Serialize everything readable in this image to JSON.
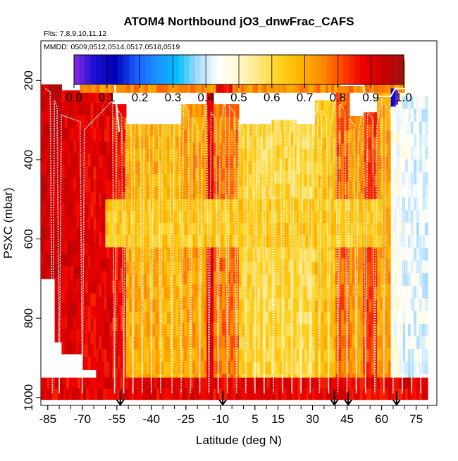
{
  "chart_data": {
    "type": "heatmap",
    "title": "ATOM4 Northbound jO3_dnwFrac_CAFS",
    "subtitle": "Flts: 7,8,9,10,11,12",
    "annotation": "MMDD: 0509,0512,0514,0517,0518,0519",
    "xlabel": "Latitude (deg N)",
    "ylabel": "PSXC (mbar)",
    "xlim": [
      -88,
      84
    ],
    "ylim": [
      1020,
      100
    ],
    "x_ticks": [
      -85,
      -70,
      -55,
      -40,
      -25,
      -10,
      5,
      15,
      30,
      45,
      60,
      75
    ],
    "x_tick_labels": [
      "-85",
      "-70",
      "-55",
      "-40",
      "-25",
      "-10",
      "5",
      "15",
      "30",
      "45",
      "60",
      "75"
    ],
    "y_ticks": [
      200,
      400,
      600,
      800,
      1000
    ],
    "y_tick_labels": [
      "200",
      "400",
      "600",
      "800",
      "1000"
    ],
    "colorbar": {
      "min": 0.0,
      "max": 1.0,
      "ticks": [
        0.0,
        0.1,
        0.2,
        0.3,
        0.4,
        0.5,
        0.6,
        0.7,
        0.8,
        0.9,
        1.0
      ],
      "tick_labels": [
        "0.0",
        "0.1",
        "0.2",
        "0.3",
        "0.4",
        "0.5",
        "0.6",
        "0.7",
        "0.8",
        "0.9",
        "1.0"
      ],
      "colors": [
        "#8a2be2",
        "#1a0fd0",
        "#0000b8",
        "#1a5cff",
        "#1e90ff",
        "#00bfff",
        "#a8dcff",
        "#ffffff",
        "#fffacd",
        "#ffe680",
        "#ffd21e",
        "#ffb400",
        "#ff8c00",
        "#ff4500",
        "#ee0000",
        "#c80000",
        "#a01010"
      ]
    },
    "regions": [
      {
        "lat": [
          -88,
          -82
        ],
        "p": [
          210,
          700
        ],
        "value": 0.93
      },
      {
        "lat": [
          -82,
          -79
        ],
        "p": [
          210,
          860
        ],
        "value": 0.93
      },
      {
        "lat": [
          -79,
          -70
        ],
        "p": [
          225,
          890
        ],
        "value": 0.91
      },
      {
        "lat": [
          -70,
          -64
        ],
        "p": [
          225,
          930
        ],
        "value": 0.89
      },
      {
        "lat": [
          -64,
          -57
        ],
        "p": [
          225,
          975
        ],
        "value": 0.9
      },
      {
        "lat": [
          -57,
          -51
        ],
        "p": [
          260,
          990
        ],
        "value": 0.86
      },
      {
        "lat": [
          -51,
          -37
        ],
        "p": [
          310,
          1005
        ],
        "value": 0.7
      },
      {
        "lat": [
          -37,
          -27
        ],
        "p": [
          310,
          1005
        ],
        "value": 0.68
      },
      {
        "lat": [
          -27,
          -16
        ],
        "p": [
          260,
          1005
        ],
        "value": 0.72
      },
      {
        "lat": [
          -16,
          -13
        ],
        "p": [
          230,
          1005
        ],
        "value": 0.9
      },
      {
        "lat": [
          -13,
          -2
        ],
        "p": [
          260,
          1005
        ],
        "value": 0.77
      },
      {
        "lat": [
          -2,
          6
        ],
        "p": [
          310,
          1005
        ],
        "value": 0.63
      },
      {
        "lat": [
          6,
          12
        ],
        "p": [
          310,
          1005
        ],
        "value": 0.61
      },
      {
        "lat": [
          12,
          23
        ],
        "p": [
          300,
          1005
        ],
        "value": 0.62
      },
      {
        "lat": [
          23,
          31
        ],
        "p": [
          310,
          1005
        ],
        "value": 0.6
      },
      {
        "lat": [
          31,
          40
        ],
        "p": [
          250,
          1005
        ],
        "value": 0.66
      },
      {
        "lat": [
          40,
          46
        ],
        "p": [
          230,
          1005
        ],
        "value": 0.79
      },
      {
        "lat": [
          46,
          52
        ],
        "p": [
          290,
          1005
        ],
        "value": 0.73
      },
      {
        "lat": [
          52,
          58
        ],
        "p": [
          280,
          1005
        ],
        "value": 0.82
      },
      {
        "lat": [
          58,
          64
        ],
        "p": [
          230,
          1005
        ],
        "value": 0.72
      },
      {
        "lat": [
          64,
          69
        ],
        "p": [
          230,
          1005
        ],
        "value": 0.46
      },
      {
        "lat": [
          69,
          80
        ],
        "p": [
          240,
          1005
        ],
        "value": 0.42
      },
      {
        "lat": [
          -71,
          70
        ],
        "p": [
          150,
          230
        ],
        "value": 0.74
      },
      {
        "lat": [
          -12,
          -5
        ],
        "p": [
          150,
          230
        ],
        "value": 0.86
      },
      {
        "lat": [
          64,
          66
        ],
        "p": [
          220,
          265
        ],
        "value": 0.15
      },
      {
        "lat": [
          65,
          67
        ],
        "p": [
          225,
          260
        ],
        "value": 0.05
      },
      {
        "lat": [
          -88,
          80
        ],
        "p": [
          950,
          1005
        ],
        "value": 0.89
      },
      {
        "lat": [
          -60,
          60
        ],
        "p": [
          500,
          620
        ],
        "value": 0.65
      }
    ],
    "profile_markers_lat": [
      -53.5,
      -9,
      39.5,
      45.5,
      66.5
    ]
  }
}
